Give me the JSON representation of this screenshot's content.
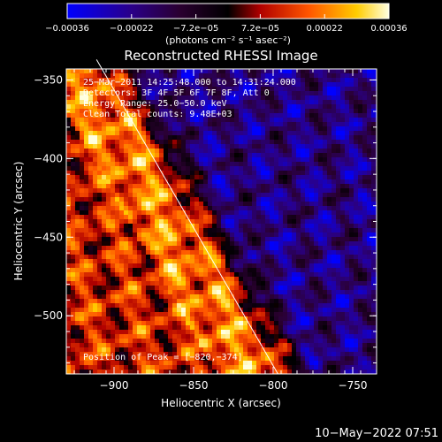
{
  "chart_data": {
    "type": "heatmap",
    "title": "Reconstructed RHESSI Image",
    "xlabel": "Heliocentric X (arcsec)",
    "ylabel": "Heliocentric Y (arcsec)",
    "xlim": [
      -930,
      -735
    ],
    "ylim": [
      -537,
      -343
    ],
    "x_ticks": [
      -900,
      -850,
      -800,
      -750
    ],
    "y_ticks": [
      -500,
      -450,
      -400,
      -350
    ],
    "x_tick_labels": [
      "−900",
      "−850",
      "−800",
      "−750"
    ],
    "y_tick_labels": [
      "−500",
      "−450",
      "−400",
      "−350"
    ],
    "colorbar": {
      "range": [
        -0.00036,
        0.00036
      ],
      "tick_labels": [
        "−0.00036",
        "−0.00022",
        "−7.2e−05",
        "7.2e−05",
        "0.00022",
        "0.00036"
      ],
      "unit_label": "(photons cm⁻² s⁻¹ asec⁻²)"
    },
    "annotations": {
      "time_range": "25−Mar−2011 14:25:48.000 to 14:31:24.000",
      "detectors": "Detectors: 3F 4F 5F 6F 7F 8F, Att 0",
      "energy": "Energy Range: 25.0−50.0 keV",
      "clean": "Clean      Total counts: 9.48E+03",
      "peak": "Position of Peak = [−820,−374]"
    },
    "limb_line": {
      "x": [
        -911,
        -797
      ],
      "y": [
        -337,
        -537
      ]
    },
    "grid": false
  },
  "footer": {
    "timestamp": "10−May−2022 07:51"
  }
}
